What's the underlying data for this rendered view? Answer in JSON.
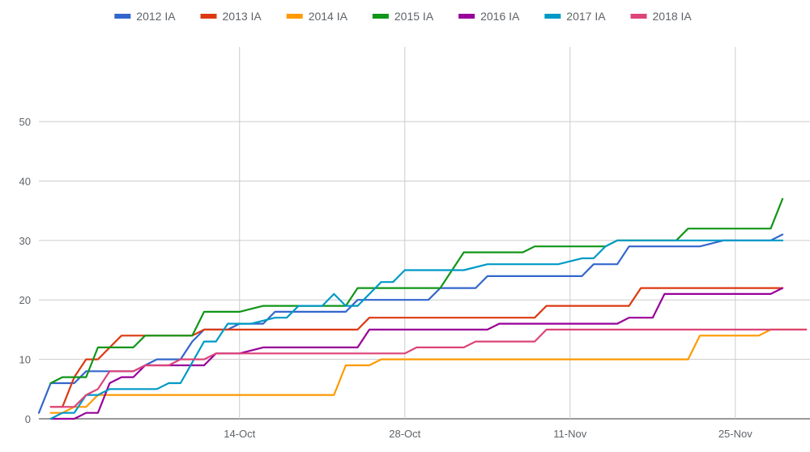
{
  "chart_data": {
    "type": "line",
    "title": "",
    "xlabel": "",
    "ylabel": "",
    "x_ticks": [
      "14-Oct",
      "28-Oct",
      "11-Nov",
      "25-Nov"
    ],
    "y_ticks": [
      0,
      10,
      20,
      30,
      40,
      50
    ],
    "ylim": [
      0,
      65
    ],
    "xlim": [
      "2019-09-27",
      "2019-12-01"
    ],
    "grid": true,
    "legend_position": "top",
    "series": [
      {
        "name": "2012 IA",
        "color": "#3366cc",
        "points": [
          [
            "2019-09-27",
            1
          ],
          [
            "2019-09-28",
            6
          ],
          [
            "2019-09-29",
            6
          ],
          [
            "2019-09-30",
            6
          ],
          [
            "2019-10-01",
            8
          ],
          [
            "2019-10-02",
            8
          ],
          [
            "2019-10-05",
            8
          ],
          [
            "2019-10-06",
            9
          ],
          [
            "2019-10-07",
            10
          ],
          [
            "2019-10-09",
            10
          ],
          [
            "2019-10-10",
            13
          ],
          [
            "2019-10-11",
            15
          ],
          [
            "2019-10-13",
            15
          ],
          [
            "2019-10-14",
            16
          ],
          [
            "2019-10-15",
            16
          ],
          [
            "2019-10-16",
            16
          ],
          [
            "2019-10-17",
            18
          ],
          [
            "2019-10-23",
            18
          ],
          [
            "2019-10-24",
            20
          ],
          [
            "2019-10-29",
            20
          ],
          [
            "2019-10-30",
            20
          ],
          [
            "2019-10-31",
            22
          ],
          [
            "2019-11-03",
            22
          ],
          [
            "2019-11-04",
            24
          ],
          [
            "2019-11-10",
            24
          ],
          [
            "2019-11-12",
            24
          ],
          [
            "2019-11-13",
            26
          ],
          [
            "2019-11-15",
            26
          ],
          [
            "2019-11-16",
            29
          ],
          [
            "2019-11-22",
            29
          ],
          [
            "2019-11-24",
            30
          ],
          [
            "2019-11-28",
            30
          ],
          [
            "2019-11-29",
            31
          ]
        ]
      },
      {
        "name": "2013 IA",
        "color": "#dc3912",
        "points": [
          [
            "2019-09-28",
            2
          ],
          [
            "2019-09-29",
            2
          ],
          [
            "2019-09-30",
            7
          ],
          [
            "2019-10-01",
            10
          ],
          [
            "2019-10-02",
            10
          ],
          [
            "2019-10-04",
            14
          ],
          [
            "2019-10-10",
            14
          ],
          [
            "2019-10-11",
            15
          ],
          [
            "2019-10-24",
            15
          ],
          [
            "2019-10-25",
            17
          ],
          [
            "2019-11-06",
            17
          ],
          [
            "2019-11-08",
            17
          ],
          [
            "2019-11-09",
            19
          ],
          [
            "2019-11-14",
            19
          ],
          [
            "2019-11-16",
            19
          ],
          [
            "2019-11-17",
            22
          ],
          [
            "2019-11-29",
            22
          ]
        ]
      },
      {
        "name": "2014 IA",
        "color": "#ff9900",
        "points": [
          [
            "2019-09-28",
            1
          ],
          [
            "2019-09-29",
            1
          ],
          [
            "2019-09-30",
            2
          ],
          [
            "2019-10-01",
            2
          ],
          [
            "2019-10-02",
            4
          ],
          [
            "2019-10-22",
            4
          ],
          [
            "2019-10-23",
            9
          ],
          [
            "2019-10-25",
            9
          ],
          [
            "2019-10-26",
            10
          ],
          [
            "2019-11-21",
            10
          ],
          [
            "2019-11-22",
            14
          ],
          [
            "2019-11-27",
            14
          ],
          [
            "2019-11-28",
            15
          ],
          [
            "2019-12-01",
            15
          ]
        ]
      },
      {
        "name": "2015 IA",
        "color": "#109618",
        "points": [
          [
            "2019-09-28",
            6
          ],
          [
            "2019-09-29",
            7
          ],
          [
            "2019-09-30",
            7
          ],
          [
            "2019-10-01",
            7
          ],
          [
            "2019-10-02",
            12
          ],
          [
            "2019-10-05",
            12
          ],
          [
            "2019-10-06",
            14
          ],
          [
            "2019-10-10",
            14
          ],
          [
            "2019-10-11",
            18
          ],
          [
            "2019-10-13",
            18
          ],
          [
            "2019-10-14",
            18
          ],
          [
            "2019-10-16",
            19
          ],
          [
            "2019-10-23",
            19
          ],
          [
            "2019-10-24",
            22
          ],
          [
            "2019-10-31",
            22
          ],
          [
            "2019-11-02",
            28
          ],
          [
            "2019-11-07",
            28
          ],
          [
            "2019-11-08",
            29
          ],
          [
            "2019-11-14",
            29
          ],
          [
            "2019-11-15",
            30
          ],
          [
            "2019-11-19",
            30
          ],
          [
            "2019-11-20",
            30
          ],
          [
            "2019-11-21",
            32
          ],
          [
            "2019-11-26",
            32
          ],
          [
            "2019-11-28",
            32
          ],
          [
            "2019-11-29",
            37
          ]
        ]
      },
      {
        "name": "2016 IA",
        "color": "#990099",
        "points": [
          [
            "2019-09-28",
            0
          ],
          [
            "2019-09-30",
            0
          ],
          [
            "2019-10-01",
            1
          ],
          [
            "2019-10-02",
            1
          ],
          [
            "2019-10-03",
            6
          ],
          [
            "2019-10-04",
            7
          ],
          [
            "2019-10-05",
            7
          ],
          [
            "2019-10-06",
            9
          ],
          [
            "2019-10-10",
            9
          ],
          [
            "2019-10-11",
            9
          ],
          [
            "2019-10-12",
            11
          ],
          [
            "2019-10-14",
            11
          ],
          [
            "2019-10-16",
            12
          ],
          [
            "2019-10-23",
            12
          ],
          [
            "2019-10-24",
            12
          ],
          [
            "2019-10-25",
            15
          ],
          [
            "2019-11-03",
            15
          ],
          [
            "2019-11-04",
            15
          ],
          [
            "2019-11-05",
            16
          ],
          [
            "2019-11-15",
            16
          ],
          [
            "2019-11-16",
            17
          ],
          [
            "2019-11-18",
            17
          ],
          [
            "2019-11-19",
            21
          ],
          [
            "2019-11-28",
            21
          ],
          [
            "2019-11-29",
            22
          ]
        ]
      },
      {
        "name": "2017 IA",
        "color": "#0099c6",
        "points": [
          [
            "2019-09-28",
            0
          ],
          [
            "2019-09-29",
            1
          ],
          [
            "2019-09-30",
            1
          ],
          [
            "2019-10-01",
            4
          ],
          [
            "2019-10-02",
            4
          ],
          [
            "2019-10-03",
            5
          ],
          [
            "2019-10-07",
            5
          ],
          [
            "2019-10-08",
            6
          ],
          [
            "2019-10-09",
            6
          ],
          [
            "2019-10-11",
            13
          ],
          [
            "2019-10-12",
            13
          ],
          [
            "2019-10-13",
            16
          ],
          [
            "2019-10-15",
            16
          ],
          [
            "2019-10-17",
            17
          ],
          [
            "2019-10-18",
            17
          ],
          [
            "2019-10-19",
            19
          ],
          [
            "2019-10-21",
            19
          ],
          [
            "2019-10-22",
            21
          ],
          [
            "2019-10-23",
            19
          ],
          [
            "2019-10-24",
            19
          ],
          [
            "2019-10-26",
            23
          ],
          [
            "2019-10-27",
            23
          ],
          [
            "2019-10-28",
            25
          ],
          [
            "2019-10-31",
            25
          ],
          [
            "2019-11-02",
            25
          ],
          [
            "2019-11-04",
            26
          ],
          [
            "2019-11-10",
            26
          ],
          [
            "2019-11-12",
            27
          ],
          [
            "2019-11-13",
            27
          ],
          [
            "2019-11-14",
            29
          ],
          [
            "2019-11-15",
            30
          ],
          [
            "2019-11-28",
            30
          ],
          [
            "2019-11-29",
            30
          ]
        ]
      },
      {
        "name": "2018 IA",
        "color": "#dd4477",
        "points": [
          [
            "2019-09-28",
            2
          ],
          [
            "2019-09-30",
            2
          ],
          [
            "2019-10-01",
            4
          ],
          [
            "2019-10-02",
            5
          ],
          [
            "2019-10-03",
            8
          ],
          [
            "2019-10-05",
            8
          ],
          [
            "2019-10-06",
            9
          ],
          [
            "2019-10-08",
            9
          ],
          [
            "2019-10-09",
            10
          ],
          [
            "2019-10-11",
            10
          ],
          [
            "2019-10-12",
            11
          ],
          [
            "2019-10-14",
            11
          ],
          [
            "2019-10-16",
            11
          ],
          [
            "2019-10-23",
            11
          ],
          [
            "2019-10-24",
            11
          ],
          [
            "2019-10-28",
            11
          ],
          [
            "2019-10-29",
            12
          ],
          [
            "2019-11-02",
            12
          ],
          [
            "2019-11-03",
            13
          ],
          [
            "2019-11-08",
            13
          ],
          [
            "2019-11-09",
            15
          ],
          [
            "2019-11-27",
            15
          ],
          [
            "2019-11-30",
            15
          ],
          [
            "2019-12-01",
            15
          ]
        ]
      }
    ]
  }
}
